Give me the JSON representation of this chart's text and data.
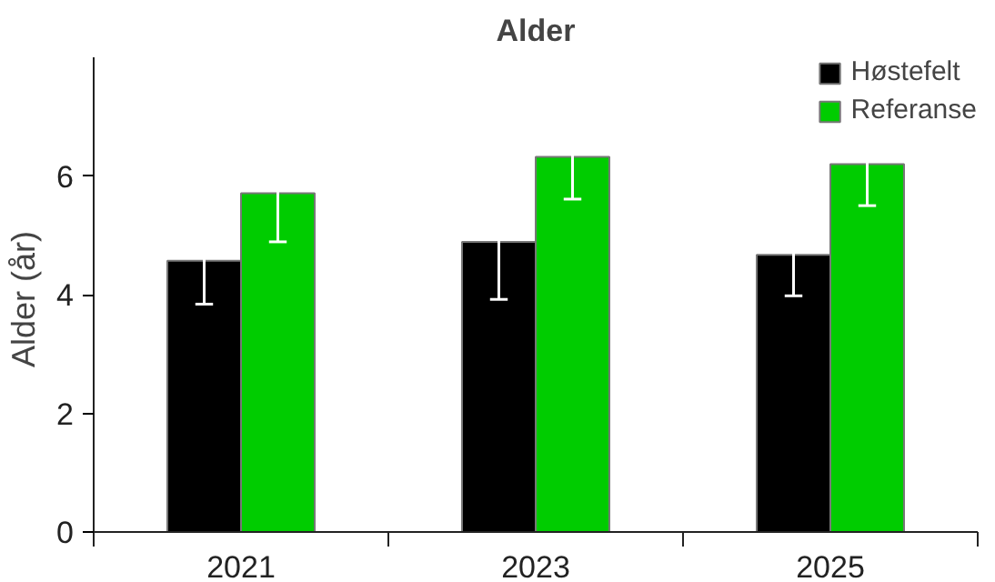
{
  "chart_data": {
    "type": "bar",
    "title": "Alder",
    "ylabel": "Alder  (år)",
    "categories": [
      "2021",
      "2023",
      "2025"
    ],
    "series": [
      {
        "name": "Høstefelt",
        "color": "#000000",
        "values": [
          4.57,
          4.89,
          4.67
        ],
        "errors": [
          0.73,
          0.97,
          0.69
        ]
      },
      {
        "name": "Referanse",
        "color": "#00cc00",
        "values": [
          5.71,
          6.32,
          6.2
        ],
        "errors": [
          0.82,
          0.71,
          0.7
        ]
      }
    ],
    "ylim": [
      0,
      8
    ],
    "yticks": [
      0,
      2,
      4,
      6
    ],
    "grid": false,
    "legend": "top right"
  }
}
